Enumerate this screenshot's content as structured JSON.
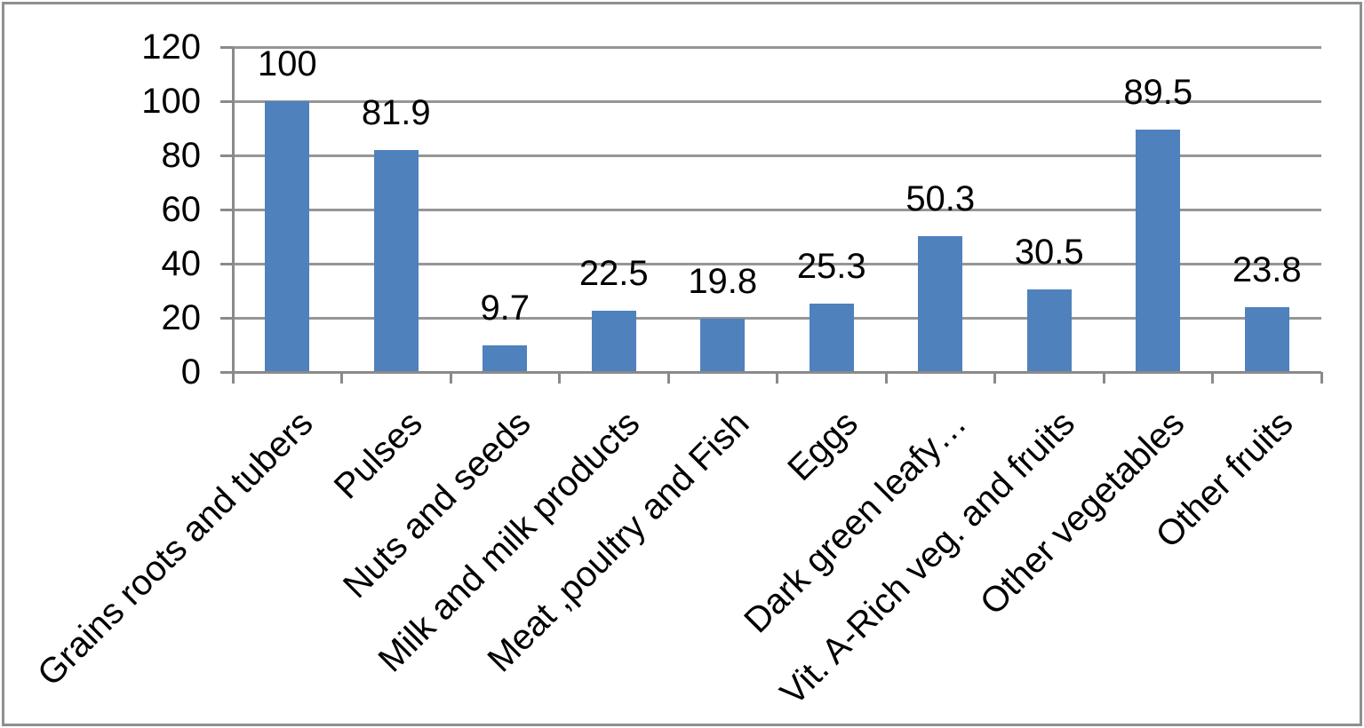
{
  "chart_data": {
    "type": "bar",
    "title": "",
    "xlabel": "",
    "ylabel": "",
    "categories": [
      "Grains roots and tubers",
      "Pulses",
      "Nuts and seeds",
      "Milk and milk products",
      "Meat ,poultry and Fish",
      "Eggs",
      "Dark green leafy…",
      "Vit. A-Rich veg. and fruits",
      "Other vegetables",
      "Other fruits"
    ],
    "values": [
      100,
      81.9,
      9.7,
      22.5,
      19.8,
      25.3,
      50.3,
      30.5,
      89.5,
      23.8
    ],
    "data_labels": [
      "100",
      "81.9",
      "9.7",
      "22.5",
      "19.8",
      "25.3",
      "50.3",
      "30.5",
      "89.5",
      "23.8"
    ],
    "ylim": [
      0,
      120
    ],
    "yticks": [
      0,
      20,
      40,
      60,
      80,
      100,
      120
    ],
    "ytick_labels": [
      "0",
      "20",
      "40",
      "60",
      "80",
      "100",
      "120"
    ],
    "grid": true,
    "legend": false,
    "x_label_rotation_deg": 45,
    "colors": {
      "bar": "#4F81BD",
      "gridline": "#969696",
      "axis": "#8A8A8A",
      "text": "#000000",
      "border": "#8F8F8F",
      "background": "#FFFFFF"
    }
  }
}
